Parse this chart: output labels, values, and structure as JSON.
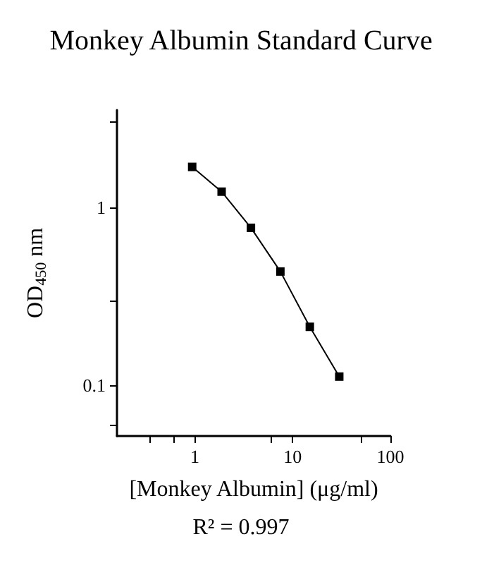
{
  "chart_data": {
    "type": "line",
    "title": "Monkey Albumin Standard Curve",
    "xlabel": "[Monkey Albumin] (μg/ml)",
    "ylabel": "OD$_{450}$ nm",
    "annotations": [
      "R² = 0.997"
    ],
    "x": [
      0.94,
      1.88,
      3.75,
      7.5,
      15,
      30
    ],
    "series": [
      {
        "color": "#000000",
        "values": [
          1.68,
          1.22,
          0.765,
          0.435,
          0.213,
          0.112
        ]
      }
    ],
    "log": "xy",
    "xlim": [
      0.16,
      100
    ],
    "ylim": [
      0.052,
      3.5
    ],
    "xticks": [
      {
        "value": 0.35,
        "label": null
      },
      {
        "value": 0.6,
        "label": null
      },
      1,
      {
        "value": 6,
        "label": null
      },
      10,
      {
        "value": 50,
        "label": null
      },
      100
    ],
    "yticks": [
      {
        "value": 0.06,
        "label": null
      },
      0.1,
      {
        "value": 0.3,
        "label": null
      },
      1,
      {
        "value": 3,
        "label": null
      }
    ],
    "grid": false,
    "marker": "square",
    "line_style": "solid"
  }
}
